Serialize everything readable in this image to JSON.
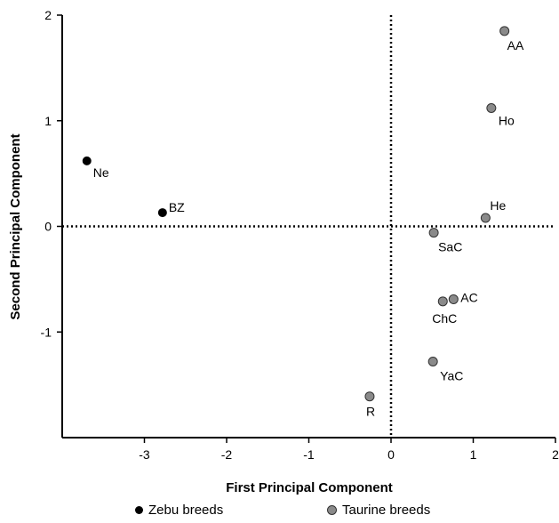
{
  "chart_data": {
    "type": "scatter",
    "title": "",
    "xlabel": "First Principal Component",
    "ylabel": "Second Principal Component",
    "xlim": [
      -4.0,
      2.0
    ],
    "ylim": [
      -2.0,
      2.0
    ],
    "xticks": [
      -3,
      -2,
      -1,
      0,
      1,
      2
    ],
    "yticks": [
      -1,
      0,
      1,
      2
    ],
    "reference_lines": {
      "x": 0,
      "y": 0,
      "style": "dotted"
    },
    "grid": false,
    "legend_position": "bottom",
    "series": [
      {
        "name": "Zebu breeds",
        "color": "#000000",
        "points": [
          {
            "label": "Ne",
            "x": -3.7,
            "y": 0.62
          },
          {
            "label": "BZ",
            "x": -2.78,
            "y": 0.13
          }
        ]
      },
      {
        "name": "Taurine breeds",
        "color": "#8a8a8a",
        "points": [
          {
            "label": "AA",
            "x": 1.38,
            "y": 1.85
          },
          {
            "label": "Ho",
            "x": 1.22,
            "y": 1.12
          },
          {
            "label": "He",
            "x": 1.15,
            "y": 0.08
          },
          {
            "label": "SaC",
            "x": 0.52,
            "y": -0.06
          },
          {
            "label": "AC",
            "x": 0.76,
            "y": -0.69
          },
          {
            "label": "ChC",
            "x": 0.63,
            "y": -0.71
          },
          {
            "label": "YaC",
            "x": 0.51,
            "y": -1.28
          },
          {
            "label": "R",
            "x": -0.26,
            "y": -1.61
          }
        ]
      }
    ]
  }
}
